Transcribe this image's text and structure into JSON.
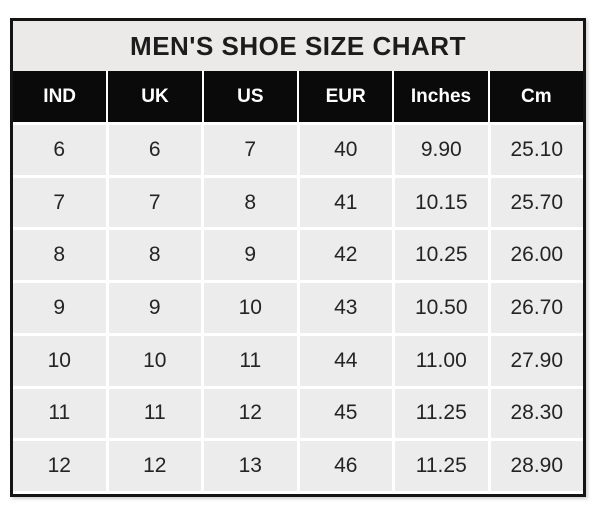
{
  "colors": {
    "page_bg": "#ffffff",
    "outer_border": "#141414",
    "title_bg": "#eceae9",
    "header_bg": "#0a0a0a",
    "header_text": "#ffffff",
    "cell_bg": "#edecec",
    "cell_text": "#242424",
    "grid_line": "#ffffff"
  },
  "chart_data": {
    "type": "table",
    "title": "MEN'S SHOE SIZE CHART",
    "columns": [
      "IND",
      "UK",
      "US",
      "EUR",
      "Inches",
      "Cm"
    ],
    "rows": [
      [
        "6",
        "6",
        "7",
        "40",
        "9.90",
        "25.10"
      ],
      [
        "7",
        "7",
        "8",
        "41",
        "10.15",
        "25.70"
      ],
      [
        "8",
        "8",
        "9",
        "42",
        "10.25",
        "26.00"
      ],
      [
        "9",
        "9",
        "10",
        "43",
        "10.50",
        "26.70"
      ],
      [
        "10",
        "10",
        "11",
        "44",
        "11.00",
        "27.90"
      ],
      [
        "11",
        "11",
        "12",
        "45",
        "11.25",
        "28.30"
      ],
      [
        "12",
        "12",
        "13",
        "46",
        "11.25",
        "28.90"
      ]
    ],
    "layout": {
      "grid": "white gridlines between gray cells",
      "legend_position": "none"
    }
  }
}
